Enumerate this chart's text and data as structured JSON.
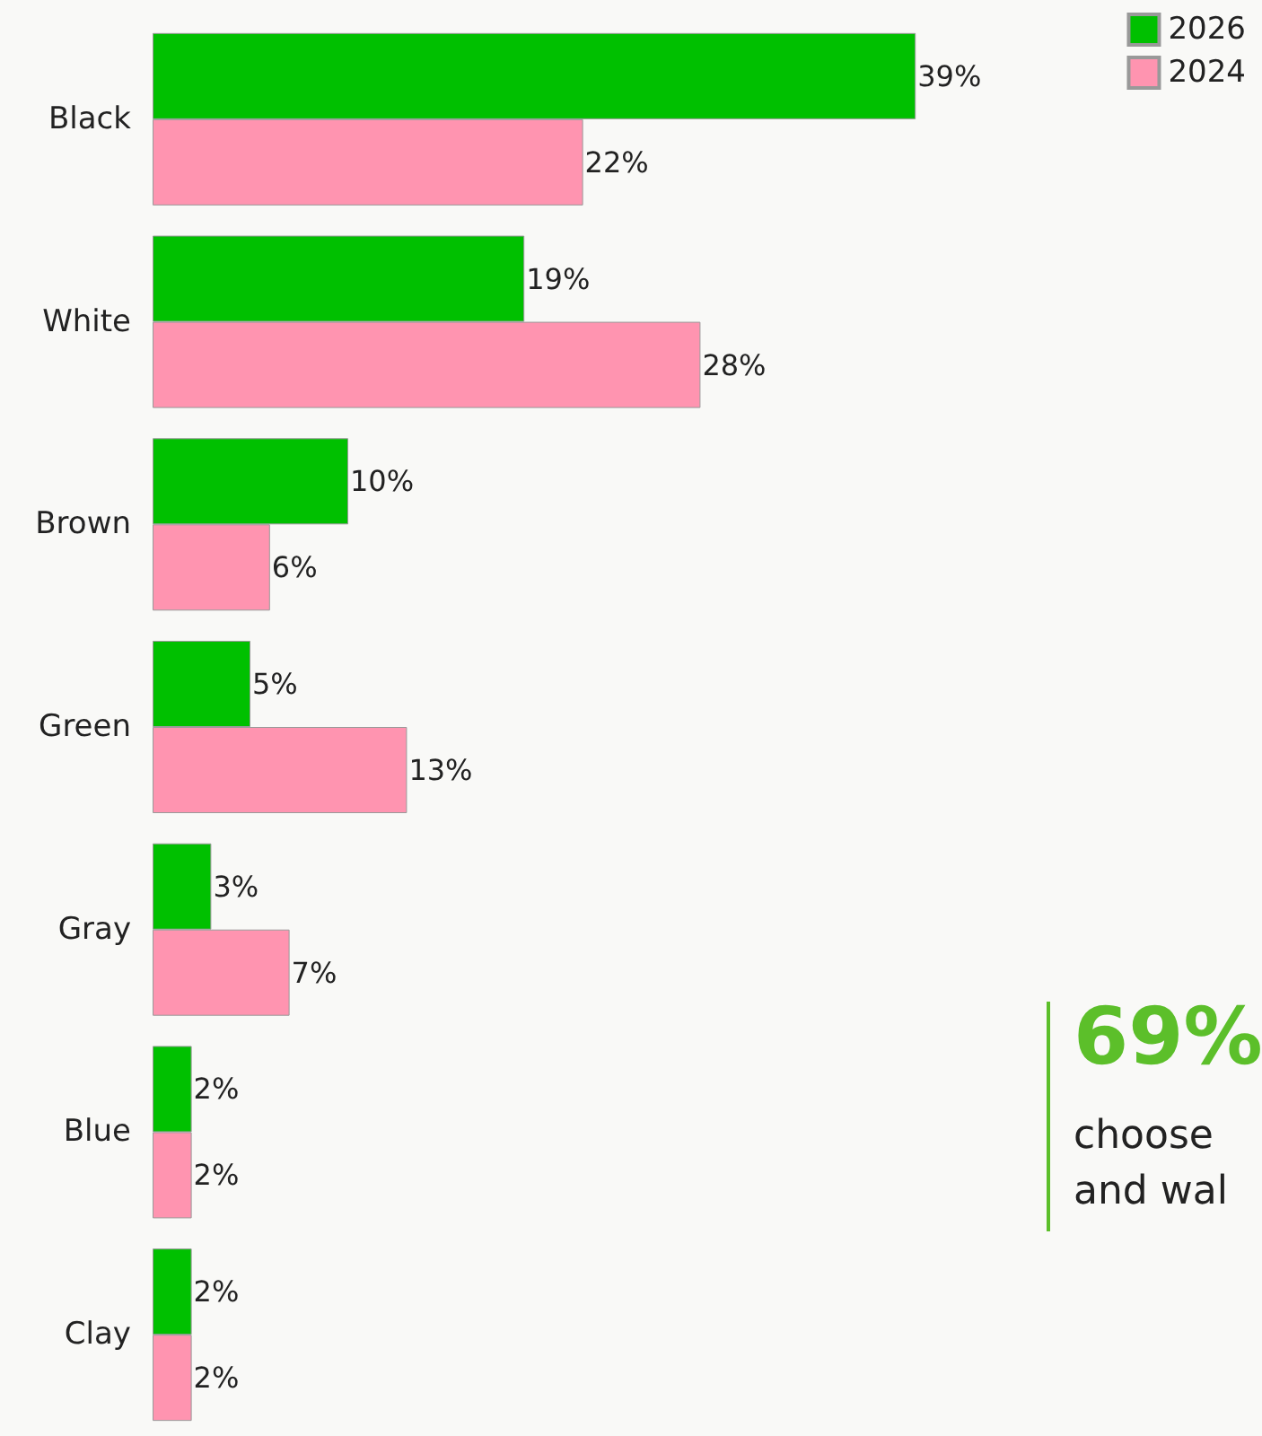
{
  "chart_data": {
    "type": "bar",
    "orientation": "horizontal",
    "categories": [
      "Black",
      "White",
      "Brown",
      "Green",
      "Gray",
      "Blue",
      "Clay"
    ],
    "series": [
      {
        "name": "2026",
        "color": "#00c000",
        "values": [
          39,
          19,
          10,
          5,
          3,
          2,
          2
        ],
        "value_labels": [
          "39%",
          "19%",
          "10%",
          "5%",
          "3%",
          "2%",
          "2%"
        ]
      },
      {
        "name": "2024",
        "color": "#ff94b0",
        "values": [
          22,
          28,
          6,
          13,
          7,
          2,
          2
        ],
        "value_labels": [
          "22%",
          "28%",
          "6%",
          "13%",
          "7%",
          "2%",
          "2%"
        ]
      }
    ],
    "legend": "top right",
    "annotations": [
      "69%",
      "choose",
      "and wal"
    ]
  }
}
